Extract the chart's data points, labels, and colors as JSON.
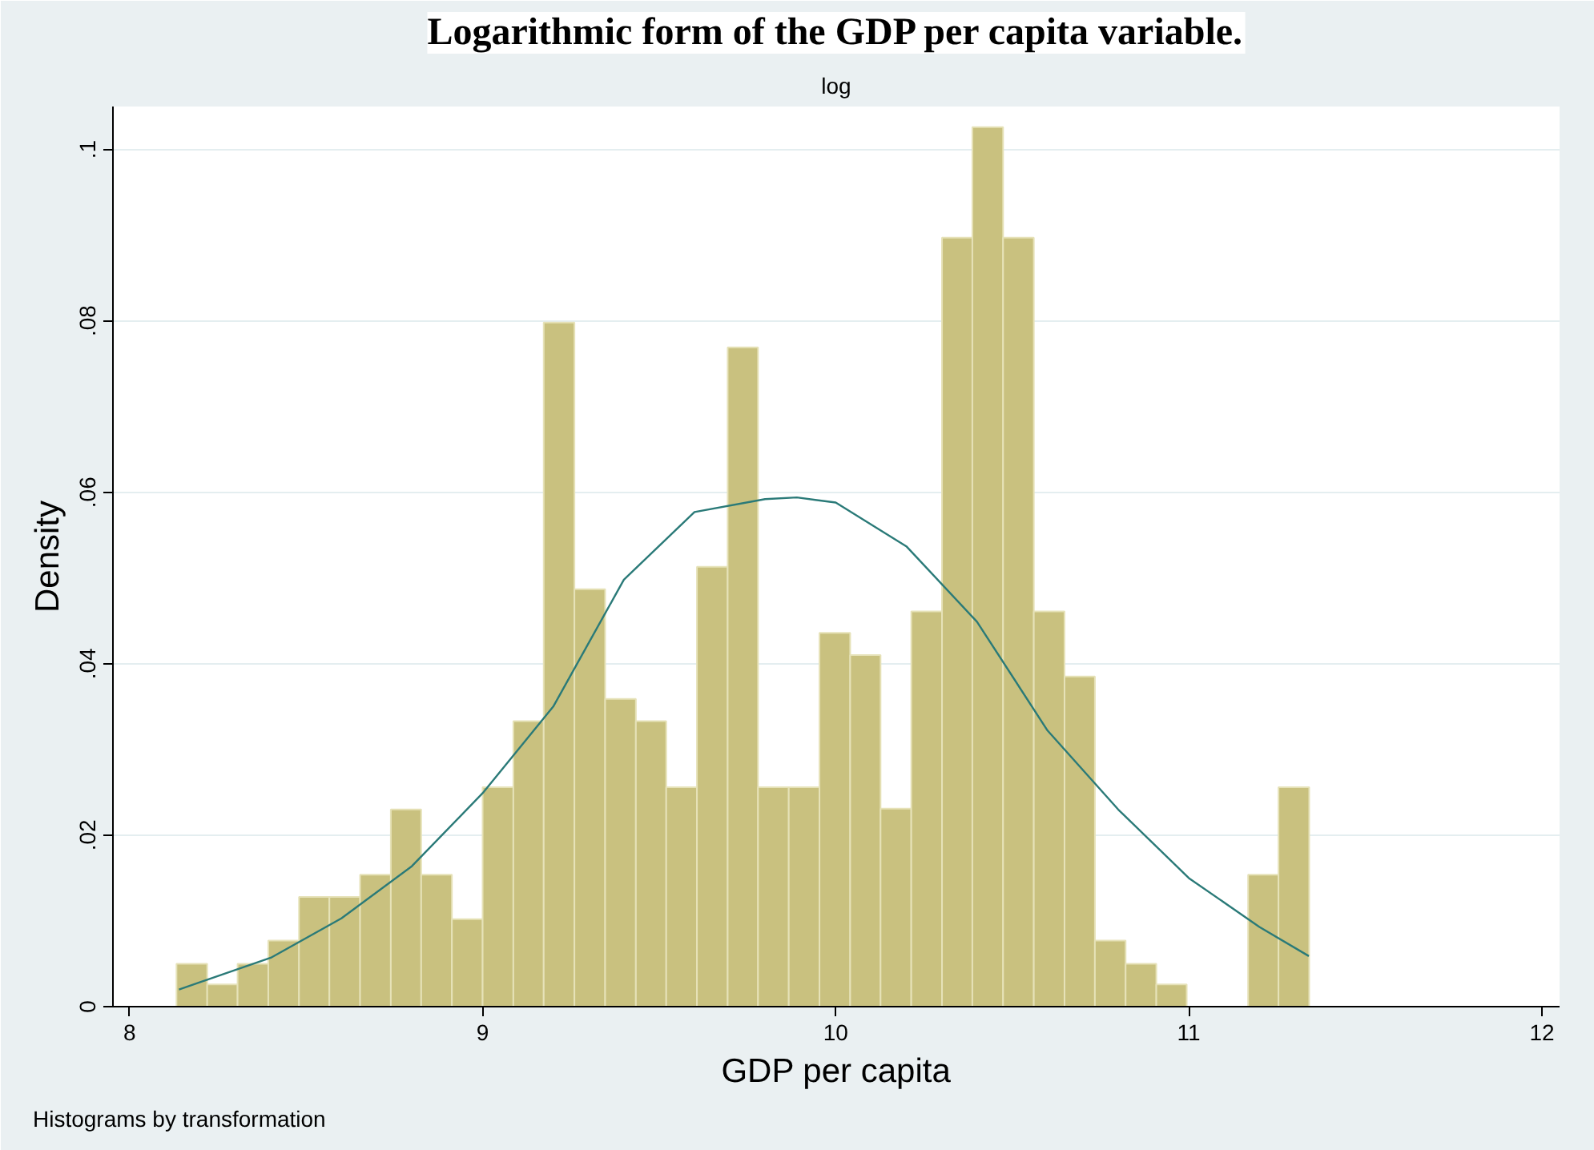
{
  "chart_data": {
    "type": "histogram",
    "title": "Logarithmic form of the GDP per capita variable.",
    "subtitle": "log",
    "xlabel": "GDP per capita",
    "ylabel": "Density",
    "annotations": [
      "Histograms by transformation"
    ],
    "bins": [
      8.133,
      8.22,
      8.306,
      8.393,
      8.48,
      8.566,
      8.653,
      8.74,
      8.826,
      8.913,
      9.0,
      9.087,
      9.173,
      9.26,
      9.347,
      9.434,
      9.52,
      9.607,
      9.694,
      9.78,
      9.867,
      9.954,
      10.041,
      10.127,
      10.214,
      10.301,
      10.387,
      10.474,
      10.561,
      10.648,
      10.734,
      10.821,
      10.908,
      10.994,
      11.081,
      11.168,
      11.254,
      11.341
    ],
    "values": [
      0.005,
      0.0026,
      0.005,
      0.0077,
      0.0128,
      0.0128,
      0.0154,
      0.023,
      0.0154,
      0.0102,
      0.0256,
      0.0333,
      0.0798,
      0.0487,
      0.0359,
      0.0333,
      0.0256,
      0.0513,
      0.0769,
      0.0256,
      0.0256,
      0.0436,
      0.041,
      0.0231,
      0.0461,
      0.0897,
      0.1026,
      0.0897,
      0.0461,
      0.0385,
      0.0077,
      0.005,
      0.0026,
      0,
      0,
      0.0154,
      0.0256
    ],
    "color": "#c9c17f",
    "series": [
      {
        "type": "line",
        "color": "#2a7a78",
        "x": [
          8.14,
          8.4,
          8.6,
          8.8,
          9.0,
          9.2,
          9.4,
          9.6,
          9.8,
          9.89,
          10.0,
          10.2,
          10.4,
          10.6,
          10.8,
          11.0,
          11.2,
          11.34
        ],
        "values": [
          0.002,
          0.0057,
          0.0103,
          0.0164,
          0.0249,
          0.035,
          0.0498,
          0.0577,
          0.0592,
          0.0594,
          0.0588,
          0.0537,
          0.0449,
          0.0322,
          0.023,
          0.015,
          0.0093,
          0.0059
        ]
      }
    ],
    "xlim": [
      7.953,
      12.05
    ],
    "ylim": [
      0,
      0.105
    ],
    "xticks": [
      8,
      9,
      10,
      11,
      12
    ],
    "yticks": [
      {
        "value": 0,
        "label": "0"
      },
      {
        "value": 0.02,
        "label": ".02"
      },
      {
        "value": 0.04,
        "label": ".04"
      },
      {
        "value": 0.06,
        "label": ".06"
      },
      {
        "value": 0.08,
        "label": ".08"
      },
      {
        "value": 0.1,
        "label": ".1"
      }
    ],
    "grid": "y"
  }
}
